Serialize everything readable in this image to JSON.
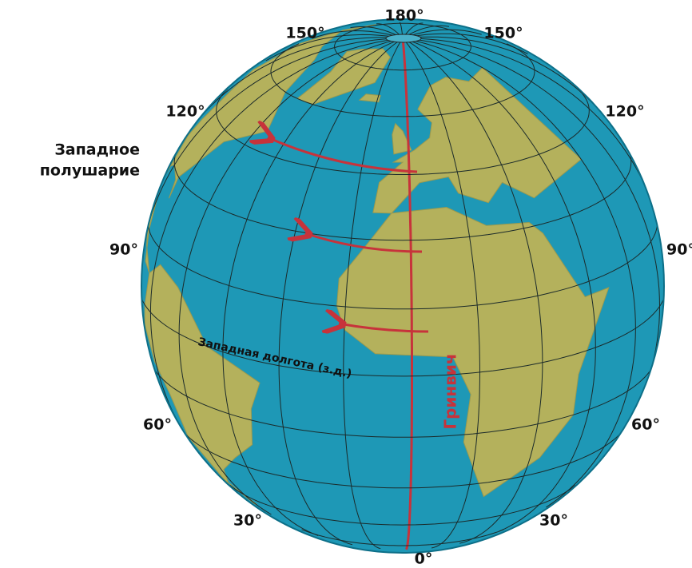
{
  "hemisphere_label": [
    "Западное",
    "полушарие"
  ],
  "meridian_label": "Гринвич",
  "longitude_label": "Западная долгота (з.д.)",
  "degree_labels": {
    "top": "180°",
    "top_left": "150°",
    "top_right": "150°",
    "upper_left": "120°",
    "upper_right": "120°",
    "left": "90°",
    "right": "90°",
    "lower_left": "60°",
    "lower_right": "60°",
    "bottom_left": "30°",
    "bottom_right": "30°",
    "bottom": "0°"
  }
}
